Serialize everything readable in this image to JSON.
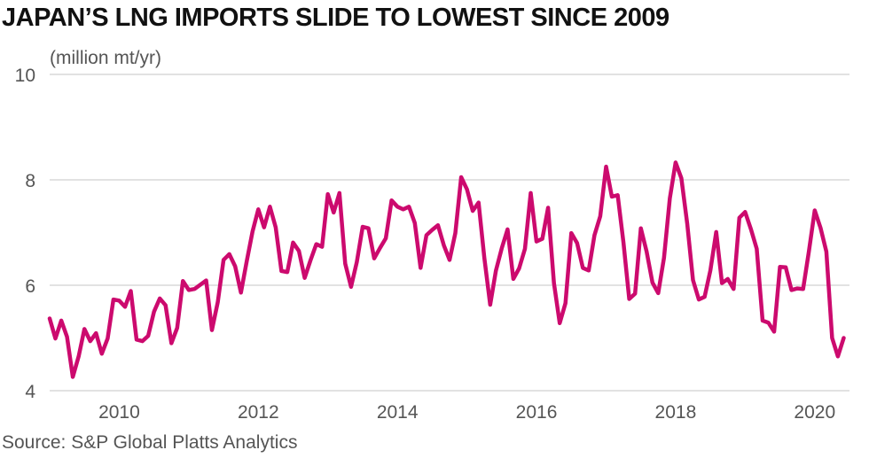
{
  "chart_data": {
    "type": "line",
    "title": "JAPAN’S LNG IMPORTS SLIDE TO LOWEST SINCE 2009",
    "ylabel": "(million mt/yr)",
    "source": "Source: S&P Global Platts Analytics",
    "ylim": [
      4,
      10
    ],
    "y_ticks": [
      "10",
      "8",
      "6",
      "4"
    ],
    "y_tick_values": [
      10,
      8,
      6,
      4
    ],
    "x_ticks": [
      "2010",
      "2012",
      "2014",
      "2016",
      "2018",
      "2020"
    ],
    "x_tick_values": [
      2010,
      2012,
      2014,
      2016,
      2018,
      2020
    ],
    "xlim": [
      2009,
      2020.5
    ],
    "grid": "horizontal",
    "line_color": "#cc0a6e",
    "series": [
      {
        "x_start": "2009-01",
        "frequency": "monthly",
        "values": [
          5.37,
          4.99,
          5.33,
          5.02,
          4.26,
          4.65,
          5.17,
          4.94,
          5.09,
          4.7,
          4.99,
          5.73,
          5.71,
          5.59,
          5.89,
          4.97,
          4.94,
          5.04,
          5.5,
          5.75,
          5.62,
          4.9,
          5.19,
          6.08,
          5.91,
          5.93,
          6.01,
          6.09,
          5.15,
          5.68,
          6.48,
          6.59,
          6.36,
          5.86,
          6.45,
          7.02,
          7.44,
          7.1,
          7.49,
          7.1,
          6.27,
          6.25,
          6.81,
          6.65,
          6.14,
          6.47,
          6.78,
          6.73,
          7.73,
          7.38,
          7.75,
          6.41,
          5.97,
          6.44,
          7.11,
          7.08,
          6.51,
          6.71,
          6.89,
          7.61,
          7.49,
          7.44,
          7.49,
          7.18,
          6.33,
          6.95,
          7.05,
          7.14,
          6.76,
          6.48,
          6.99,
          8.05,
          7.82,
          7.41,
          7.57,
          6.52,
          5.63,
          6.28,
          6.7,
          7.06,
          6.12,
          6.32,
          6.69,
          7.75,
          6.83,
          6.88,
          7.47,
          6.04,
          5.28,
          5.66,
          6.99,
          6.8,
          6.33,
          6.28,
          6.95,
          7.31,
          8.25,
          7.68,
          7.71,
          6.81,
          5.74,
          5.84,
          7.08,
          6.64,
          6.05,
          5.85,
          6.52,
          7.65,
          8.33,
          8.03,
          7.17,
          6.1,
          5.73,
          5.78,
          6.28,
          7.01,
          6.04,
          6.12,
          5.93,
          7.28,
          7.39,
          7.06,
          6.69,
          5.33,
          5.29,
          5.12,
          6.35,
          6.34,
          5.91,
          5.94,
          5.93,
          6.64,
          7.42,
          7.09,
          6.64,
          5.0,
          4.65,
          5.0
        ]
      }
    ]
  }
}
